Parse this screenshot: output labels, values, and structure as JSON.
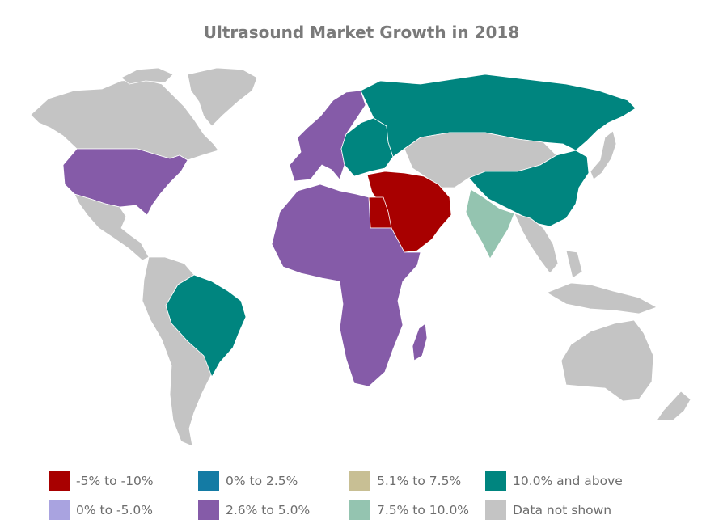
{
  "title": "Ultrasound Market Growth in 2018",
  "colors": {
    "neg5_to_neg10": "#a80000",
    "zero_to_2_5": "#147ba4",
    "5_1_to_7_5": "#c8bf94",
    "10_and_above": "#00857f",
    "zero_to_neg5": "#a9a3e0",
    "2_6_to_5_0": "#855ba8",
    "7_5_to_10_0": "#94c4b0",
    "not_shown": "#c4c4c4"
  },
  "legend": [
    {
      "label": "-5% to -10%",
      "color": "#a80000"
    },
    {
      "label": "0% to 2.5%",
      "color": "#147ba4"
    },
    {
      "label": "5.1% to 7.5%",
      "color": "#c8bf94"
    },
    {
      "label": "10.0% and above",
      "color": "#00857f"
    },
    {
      "label": "0% to -5.0%",
      "color": "#a9a3e0"
    },
    {
      "label": "2.6% to 5.0%",
      "color": "#855ba8"
    },
    {
      "label": "7.5% to 10.0%",
      "color": "#94c4b0"
    },
    {
      "label": "Data not shown",
      "color": "#c4c4c4"
    }
  ],
  "regions": [
    {
      "name": "Canada & Alaska",
      "category": "Data not shown"
    },
    {
      "name": "Greenland",
      "category": "Data not shown"
    },
    {
      "name": "United States",
      "category": "2.6% to 5.0%"
    },
    {
      "name": "Mexico & Central America",
      "category": "Data not shown"
    },
    {
      "name": "Brazil",
      "category": "10.0% and above"
    },
    {
      "name": "Rest of South America",
      "category": "Data not shown"
    },
    {
      "name": "Western Europe",
      "category": "2.6% to 5.0%"
    },
    {
      "name": "Eastern Europe",
      "category": "10.0% and above"
    },
    {
      "name": "Russia",
      "category": "10.0% and above"
    },
    {
      "name": "China",
      "category": "10.0% and above"
    },
    {
      "name": "Central Asia & Mongolia",
      "category": "Data not shown"
    },
    {
      "name": "Middle East",
      "category": "-5% to -10%"
    },
    {
      "name": "Egypt",
      "category": "-5% to -10%"
    },
    {
      "name": "Africa",
      "category": "2.6% to 5.0%"
    },
    {
      "name": "Madagascar",
      "category": "2.6% to 5.0%"
    },
    {
      "name": "India",
      "category": "7.5% to 10.0%"
    },
    {
      "name": "Southeast Asia",
      "category": "Data not shown"
    },
    {
      "name": "Japan",
      "category": "Data not shown"
    },
    {
      "name": "Australia",
      "category": "Data not shown"
    },
    {
      "name": "New Zealand",
      "category": "Data not shown"
    }
  ]
}
